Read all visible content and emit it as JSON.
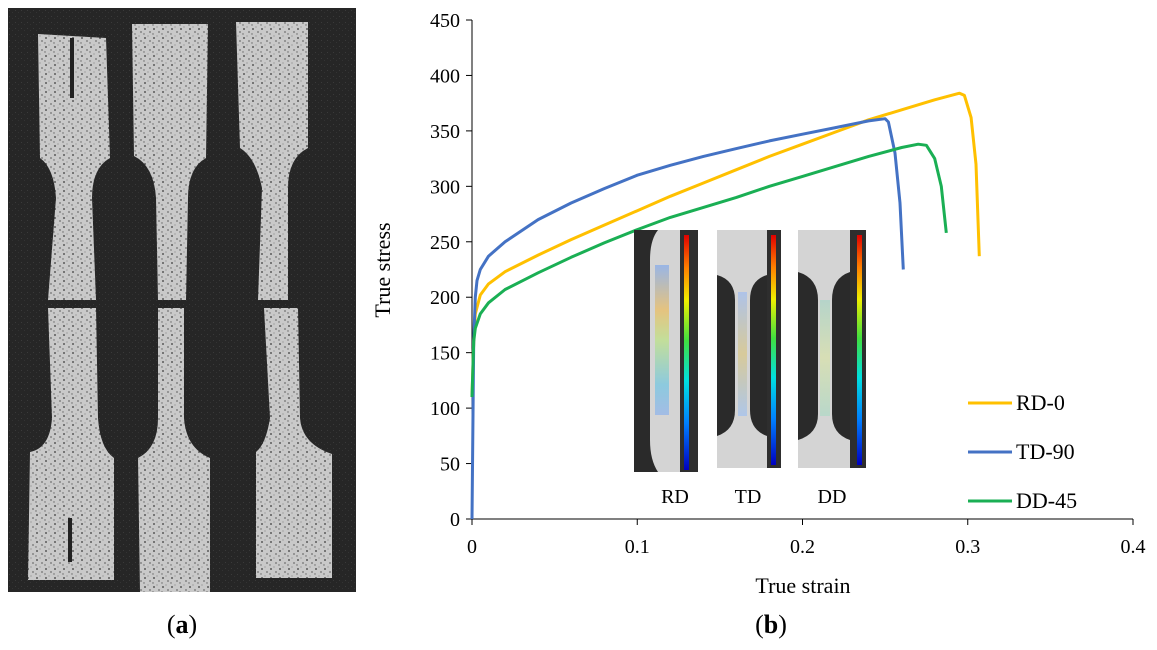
{
  "figure": {
    "caption_a": "a",
    "caption_b": "b"
  },
  "chart_data": {
    "type": "line",
    "title": "",
    "xlabel": "True strain",
    "ylabel": "True stress",
    "xlim": [
      0,
      0.4
    ],
    "ylim": [
      0,
      450
    ],
    "xticks": [
      0,
      0.1,
      0.2,
      0.3,
      0.4
    ],
    "xtick_labels": [
      "0",
      "0.1",
      "0.2",
      "0.3",
      "0.4"
    ],
    "yticks": [
      0,
      50,
      100,
      150,
      200,
      250,
      300,
      350,
      400,
      450
    ],
    "ytick_labels": [
      "0",
      "50",
      "100",
      "150",
      "200",
      "250",
      "300",
      "350",
      "400",
      "450"
    ],
    "grid": false,
    "legend_position": "bottom-right",
    "series": [
      {
        "name": "RD-0",
        "color": "#FFC000",
        "x": [
          0,
          0.001,
          0.002,
          0.005,
          0.01,
          0.02,
          0.04,
          0.06,
          0.08,
          0.1,
          0.12,
          0.14,
          0.16,
          0.18,
          0.2,
          0.22,
          0.24,
          0.26,
          0.28,
          0.295,
          0.298,
          0.302,
          0.305,
          0.307
        ],
        "y": [
          110,
          160,
          185,
          202,
          212,
          223,
          238,
          252,
          265,
          278,
          291,
          303,
          315,
          327,
          338,
          349,
          360,
          369,
          378,
          384,
          382,
          362,
          320,
          237
        ]
      },
      {
        "name": "TD-90",
        "color": "#4472C4",
        "x": [
          0,
          0.001,
          0.002,
          0.003,
          0.005,
          0.01,
          0.02,
          0.04,
          0.06,
          0.08,
          0.1,
          0.12,
          0.14,
          0.16,
          0.18,
          0.2,
          0.22,
          0.24,
          0.25,
          0.252,
          0.256,
          0.259,
          0.261
        ],
        "y": [
          0,
          160,
          200,
          215,
          225,
          237,
          250,
          270,
          285,
          298,
          310,
          319,
          327,
          334,
          341,
          347,
          353,
          359,
          361,
          358,
          330,
          285,
          225
        ]
      },
      {
        "name": "DD-45",
        "color": "#1AAF54",
        "x": [
          0,
          0.001,
          0.002,
          0.005,
          0.01,
          0.02,
          0.04,
          0.06,
          0.08,
          0.1,
          0.12,
          0.14,
          0.16,
          0.18,
          0.2,
          0.22,
          0.24,
          0.26,
          0.27,
          0.275,
          0.28,
          0.284,
          0.287
        ],
        "y": [
          110,
          160,
          172,
          185,
          195,
          207,
          222,
          236,
          249,
          261,
          272,
          281,
          290,
          300,
          309,
          318,
          327,
          335,
          338,
          337,
          325,
          300,
          258
        ]
      }
    ],
    "inset": {
      "labels": [
        "RD",
        "TD",
        "DD"
      ]
    }
  }
}
